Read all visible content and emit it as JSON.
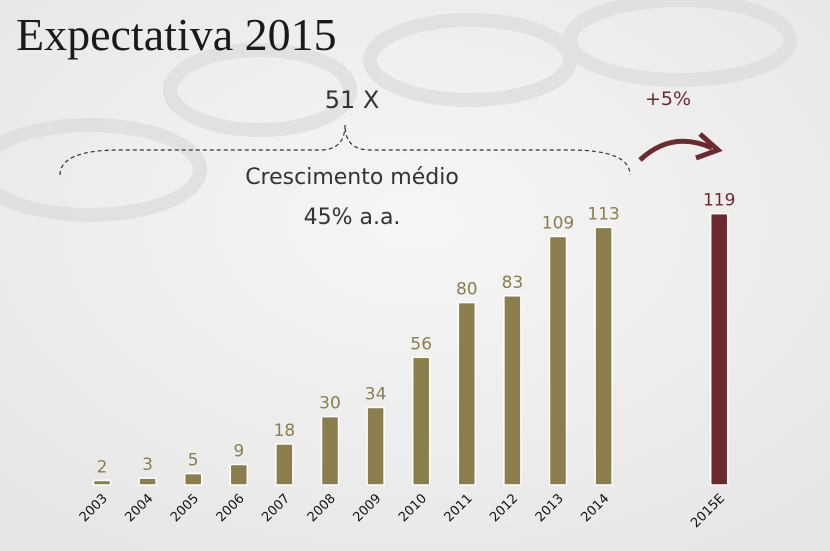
{
  "chart_data": {
    "type": "bar",
    "title": "Expectativa 2015",
    "categories": [
      "2003",
      "2004",
      "2005",
      "2006",
      "2007",
      "2008",
      "2009",
      "2010",
      "2011",
      "2012",
      "2013",
      "2014",
      "2015E"
    ],
    "values": [
      2,
      3,
      5,
      9,
      18,
      30,
      34,
      56,
      80,
      83,
      109,
      113,
      119
    ],
    "colors": [
      "#8a7f4c",
      "#8a7f4c",
      "#8a7f4c",
      "#8a7f4c",
      "#8a7f4c",
      "#8a7f4c",
      "#8a7f4c",
      "#8a7f4c",
      "#8a7f4c",
      "#8a7f4c",
      "#8a7f4c",
      "#8a7f4c",
      "#6b2b2e"
    ],
    "annotations": [
      "51 X",
      "Crescimento médio",
      "45% a.a.",
      "+5%"
    ]
  }
}
